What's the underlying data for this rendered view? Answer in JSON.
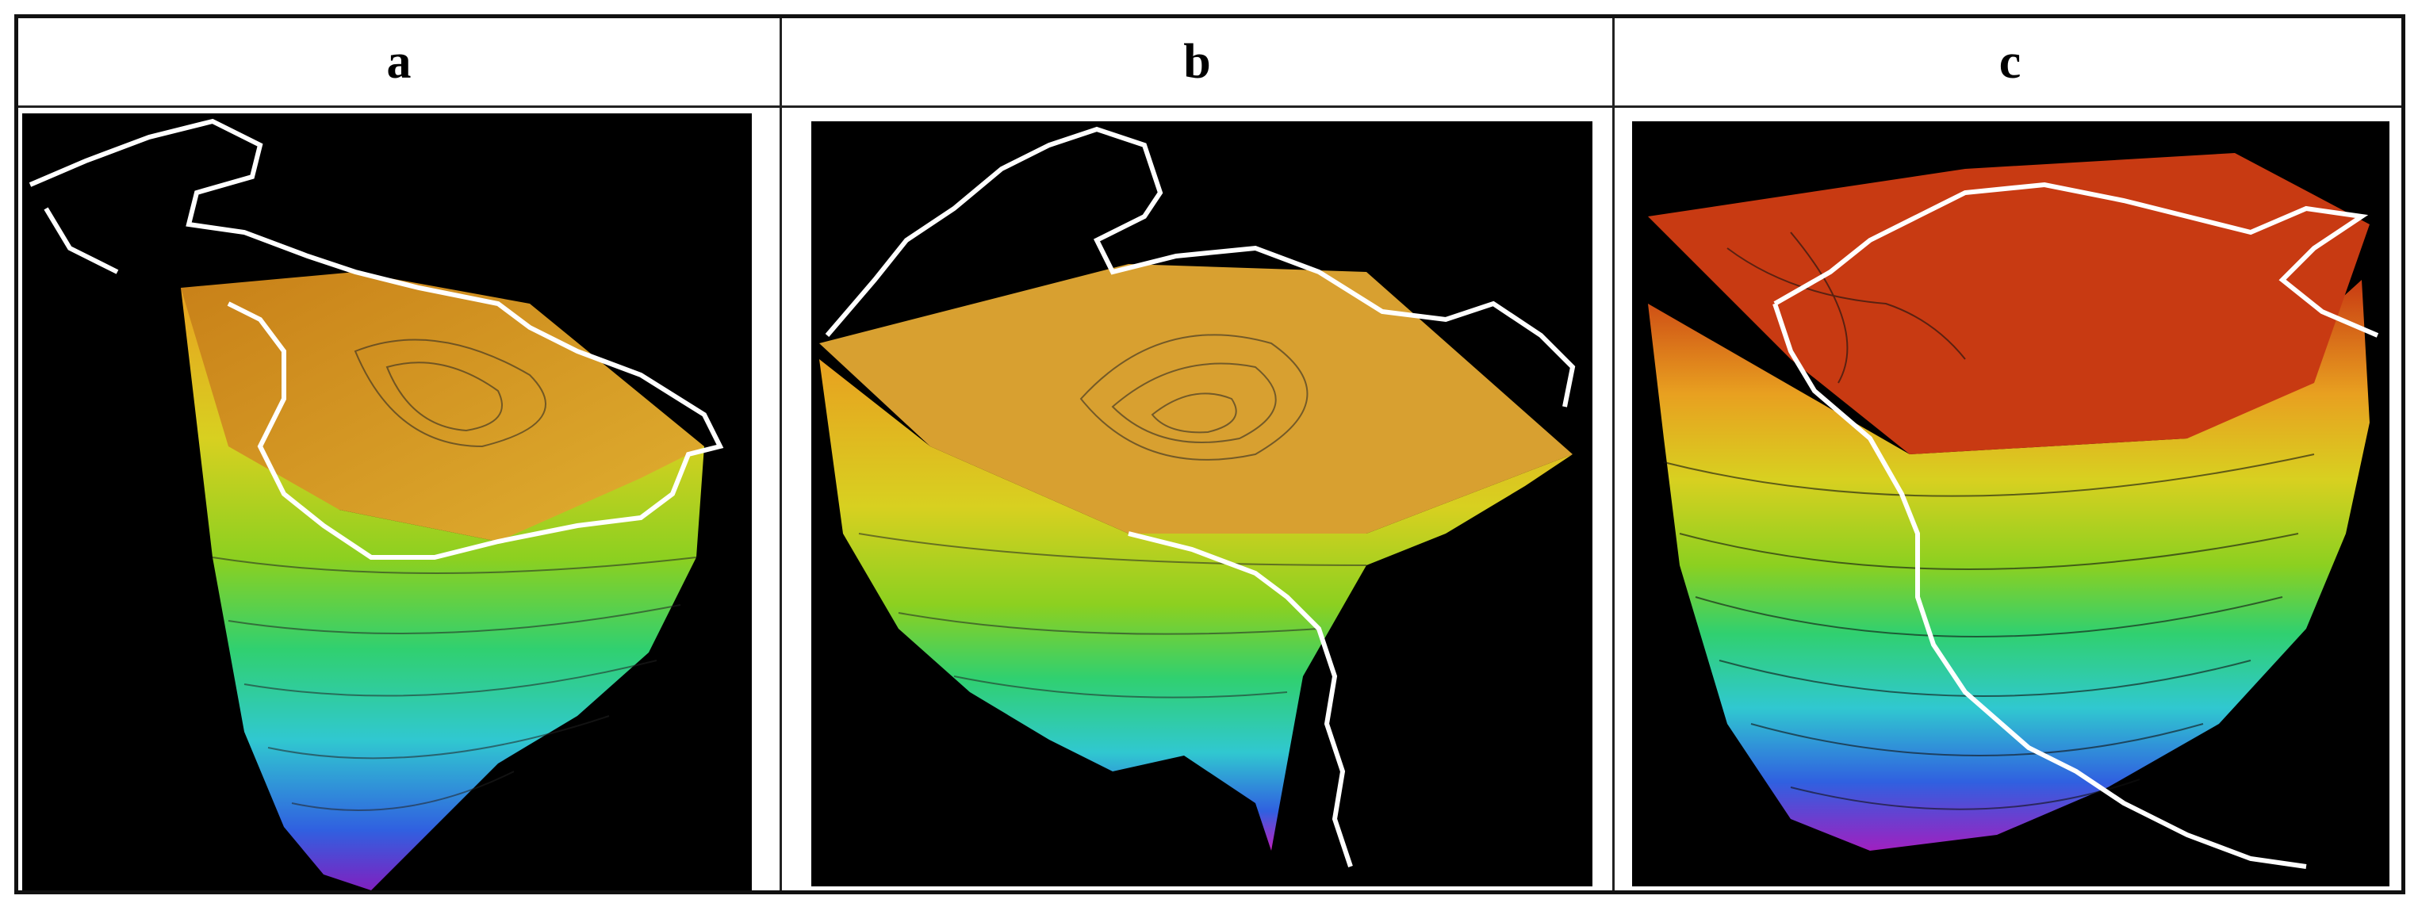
{
  "panels": [
    {
      "id": "a",
      "label": "a"
    },
    {
      "id": "b",
      "label": "b"
    },
    {
      "id": "c",
      "label": "c"
    }
  ],
  "colors": {
    "background": "#000000",
    "coastline": "#ffffff",
    "surface_top": "#d6a02a",
    "surface_deep_red": "#c83a12",
    "gradient": [
      "#c83a12",
      "#e8a020",
      "#d8d020",
      "#8cd020",
      "#30d070",
      "#30c8d0",
      "#3060e0",
      "#8020c0"
    ]
  }
}
